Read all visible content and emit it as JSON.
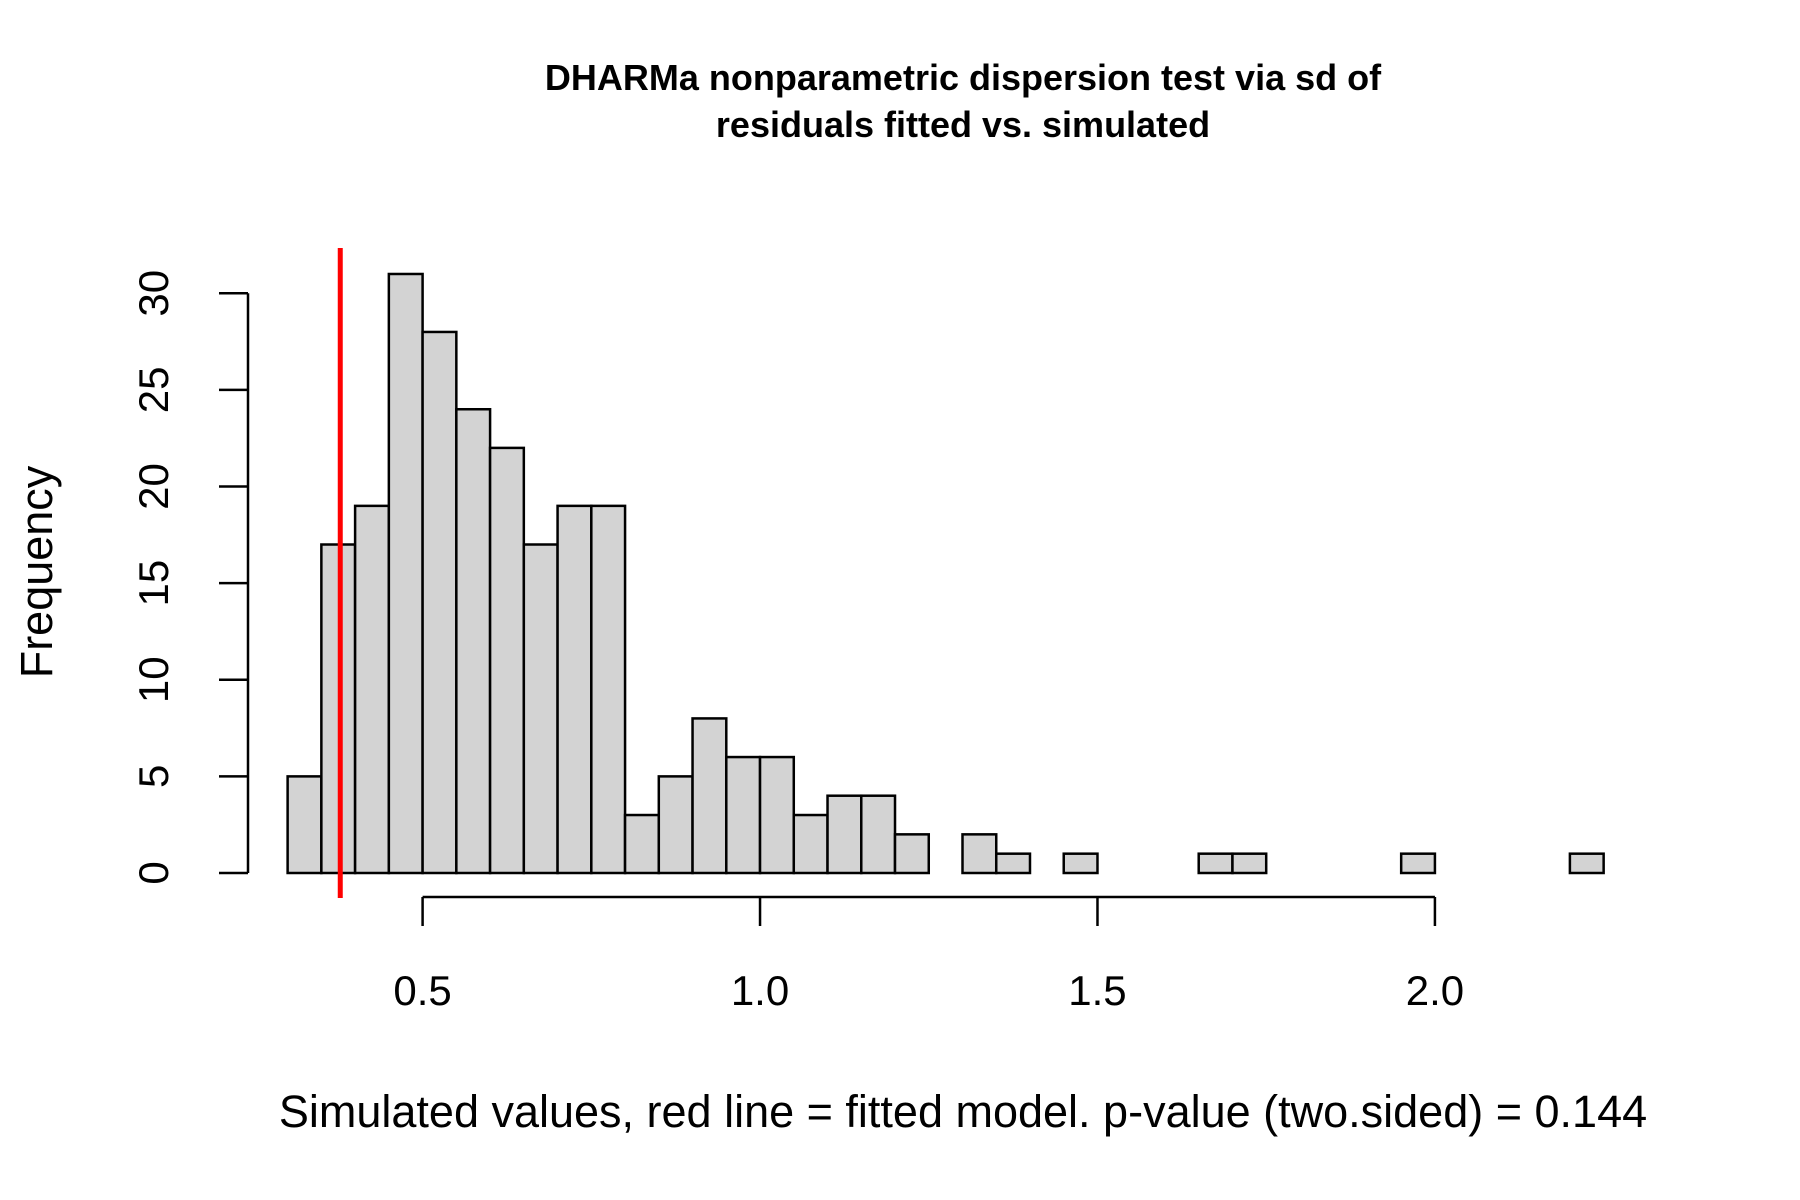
{
  "chart_data": {
    "type": "bar",
    "title_line1": "DHARMa nonparametric dispersion test via sd of",
    "title_line2": "residuals fitted vs. simulated",
    "xlabel": "Simulated values, red line = fitted model. p-value (two.sided) = 0.144",
    "ylabel": "Frequency",
    "bin_width": 0.05,
    "bins": [
      {
        "start": 0.3,
        "count": 5
      },
      {
        "start": 0.35,
        "count": 17
      },
      {
        "start": 0.4,
        "count": 19
      },
      {
        "start": 0.45,
        "count": 31
      },
      {
        "start": 0.5,
        "count": 28
      },
      {
        "start": 0.55,
        "count": 24
      },
      {
        "start": 0.6,
        "count": 22
      },
      {
        "start": 0.65,
        "count": 17
      },
      {
        "start": 0.7,
        "count": 19
      },
      {
        "start": 0.75,
        "count": 19
      },
      {
        "start": 0.8,
        "count": 3
      },
      {
        "start": 0.85,
        "count": 5
      },
      {
        "start": 0.9,
        "count": 8
      },
      {
        "start": 0.95,
        "count": 6
      },
      {
        "start": 1.0,
        "count": 6
      },
      {
        "start": 1.05,
        "count": 3
      },
      {
        "start": 1.1,
        "count": 4
      },
      {
        "start": 1.15,
        "count": 4
      },
      {
        "start": 1.2,
        "count": 2
      },
      {
        "start": 1.25,
        "count": 0
      },
      {
        "start": 1.3,
        "count": 2
      },
      {
        "start": 1.35,
        "count": 1
      },
      {
        "start": 1.4,
        "count": 0
      },
      {
        "start": 1.45,
        "count": 1
      },
      {
        "start": 1.5,
        "count": 0
      },
      {
        "start": 1.55,
        "count": 0
      },
      {
        "start": 1.6,
        "count": 0
      },
      {
        "start": 1.65,
        "count": 1
      },
      {
        "start": 1.7,
        "count": 1
      },
      {
        "start": 1.75,
        "count": 0
      },
      {
        "start": 1.8,
        "count": 0
      },
      {
        "start": 1.85,
        "count": 0
      },
      {
        "start": 1.9,
        "count": 0
      },
      {
        "start": 1.95,
        "count": 1
      },
      {
        "start": 2.0,
        "count": 0
      },
      {
        "start": 2.05,
        "count": 0
      },
      {
        "start": 2.1,
        "count": 0
      },
      {
        "start": 2.15,
        "count": 0
      },
      {
        "start": 2.2,
        "count": 1
      }
    ],
    "observed_value": 0.378,
    "observed_line_color": "#ff0000",
    "bar_fill": "#d3d3d3",
    "x_ticks": [
      0.5,
      1.0,
      1.5,
      2.0
    ],
    "x_tick_labels": [
      "0.5",
      "1.0",
      "1.5",
      "2.0"
    ],
    "y_ticks": [
      0,
      5,
      10,
      15,
      20,
      25,
      30
    ],
    "y_tick_labels": [
      "0",
      "5",
      "10",
      "15",
      "20",
      "25",
      "30"
    ],
    "xlim": [
      0.225,
      2.375
    ],
    "ylim": [
      0,
      32.5
    ],
    "grid": false,
    "legend": "none"
  }
}
